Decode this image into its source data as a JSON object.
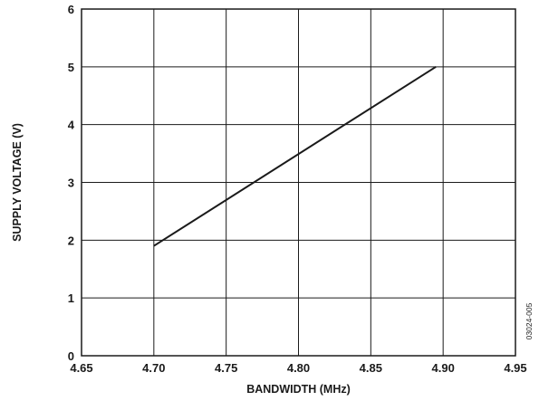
{
  "chart_data": {
    "type": "line",
    "title": "",
    "xlabel": "BANDWIDTH (MHz)",
    "ylabel": "SUPPLY VOLTAGE (V)",
    "xlim": [
      4.65,
      4.95
    ],
    "ylim": [
      0,
      6
    ],
    "x_ticks": [
      4.65,
      4.7,
      4.75,
      4.8,
      4.85,
      4.9,
      4.95
    ],
    "x_tick_labels": [
      "4.65",
      "4.70",
      "4.75",
      "4.80",
      "4.85",
      "4.90",
      "4.95"
    ],
    "y_ticks": [
      0,
      1,
      2,
      3,
      4,
      5,
      6
    ],
    "y_tick_labels": [
      "0",
      "1",
      "2",
      "3",
      "4",
      "5",
      "6"
    ],
    "grid": true,
    "series": [
      {
        "x": [
          4.7,
          4.895
        ],
        "y": [
          1.9,
          5.0
        ],
        "color": "#1a1a1a"
      }
    ],
    "figure_id": "03024-005"
  }
}
